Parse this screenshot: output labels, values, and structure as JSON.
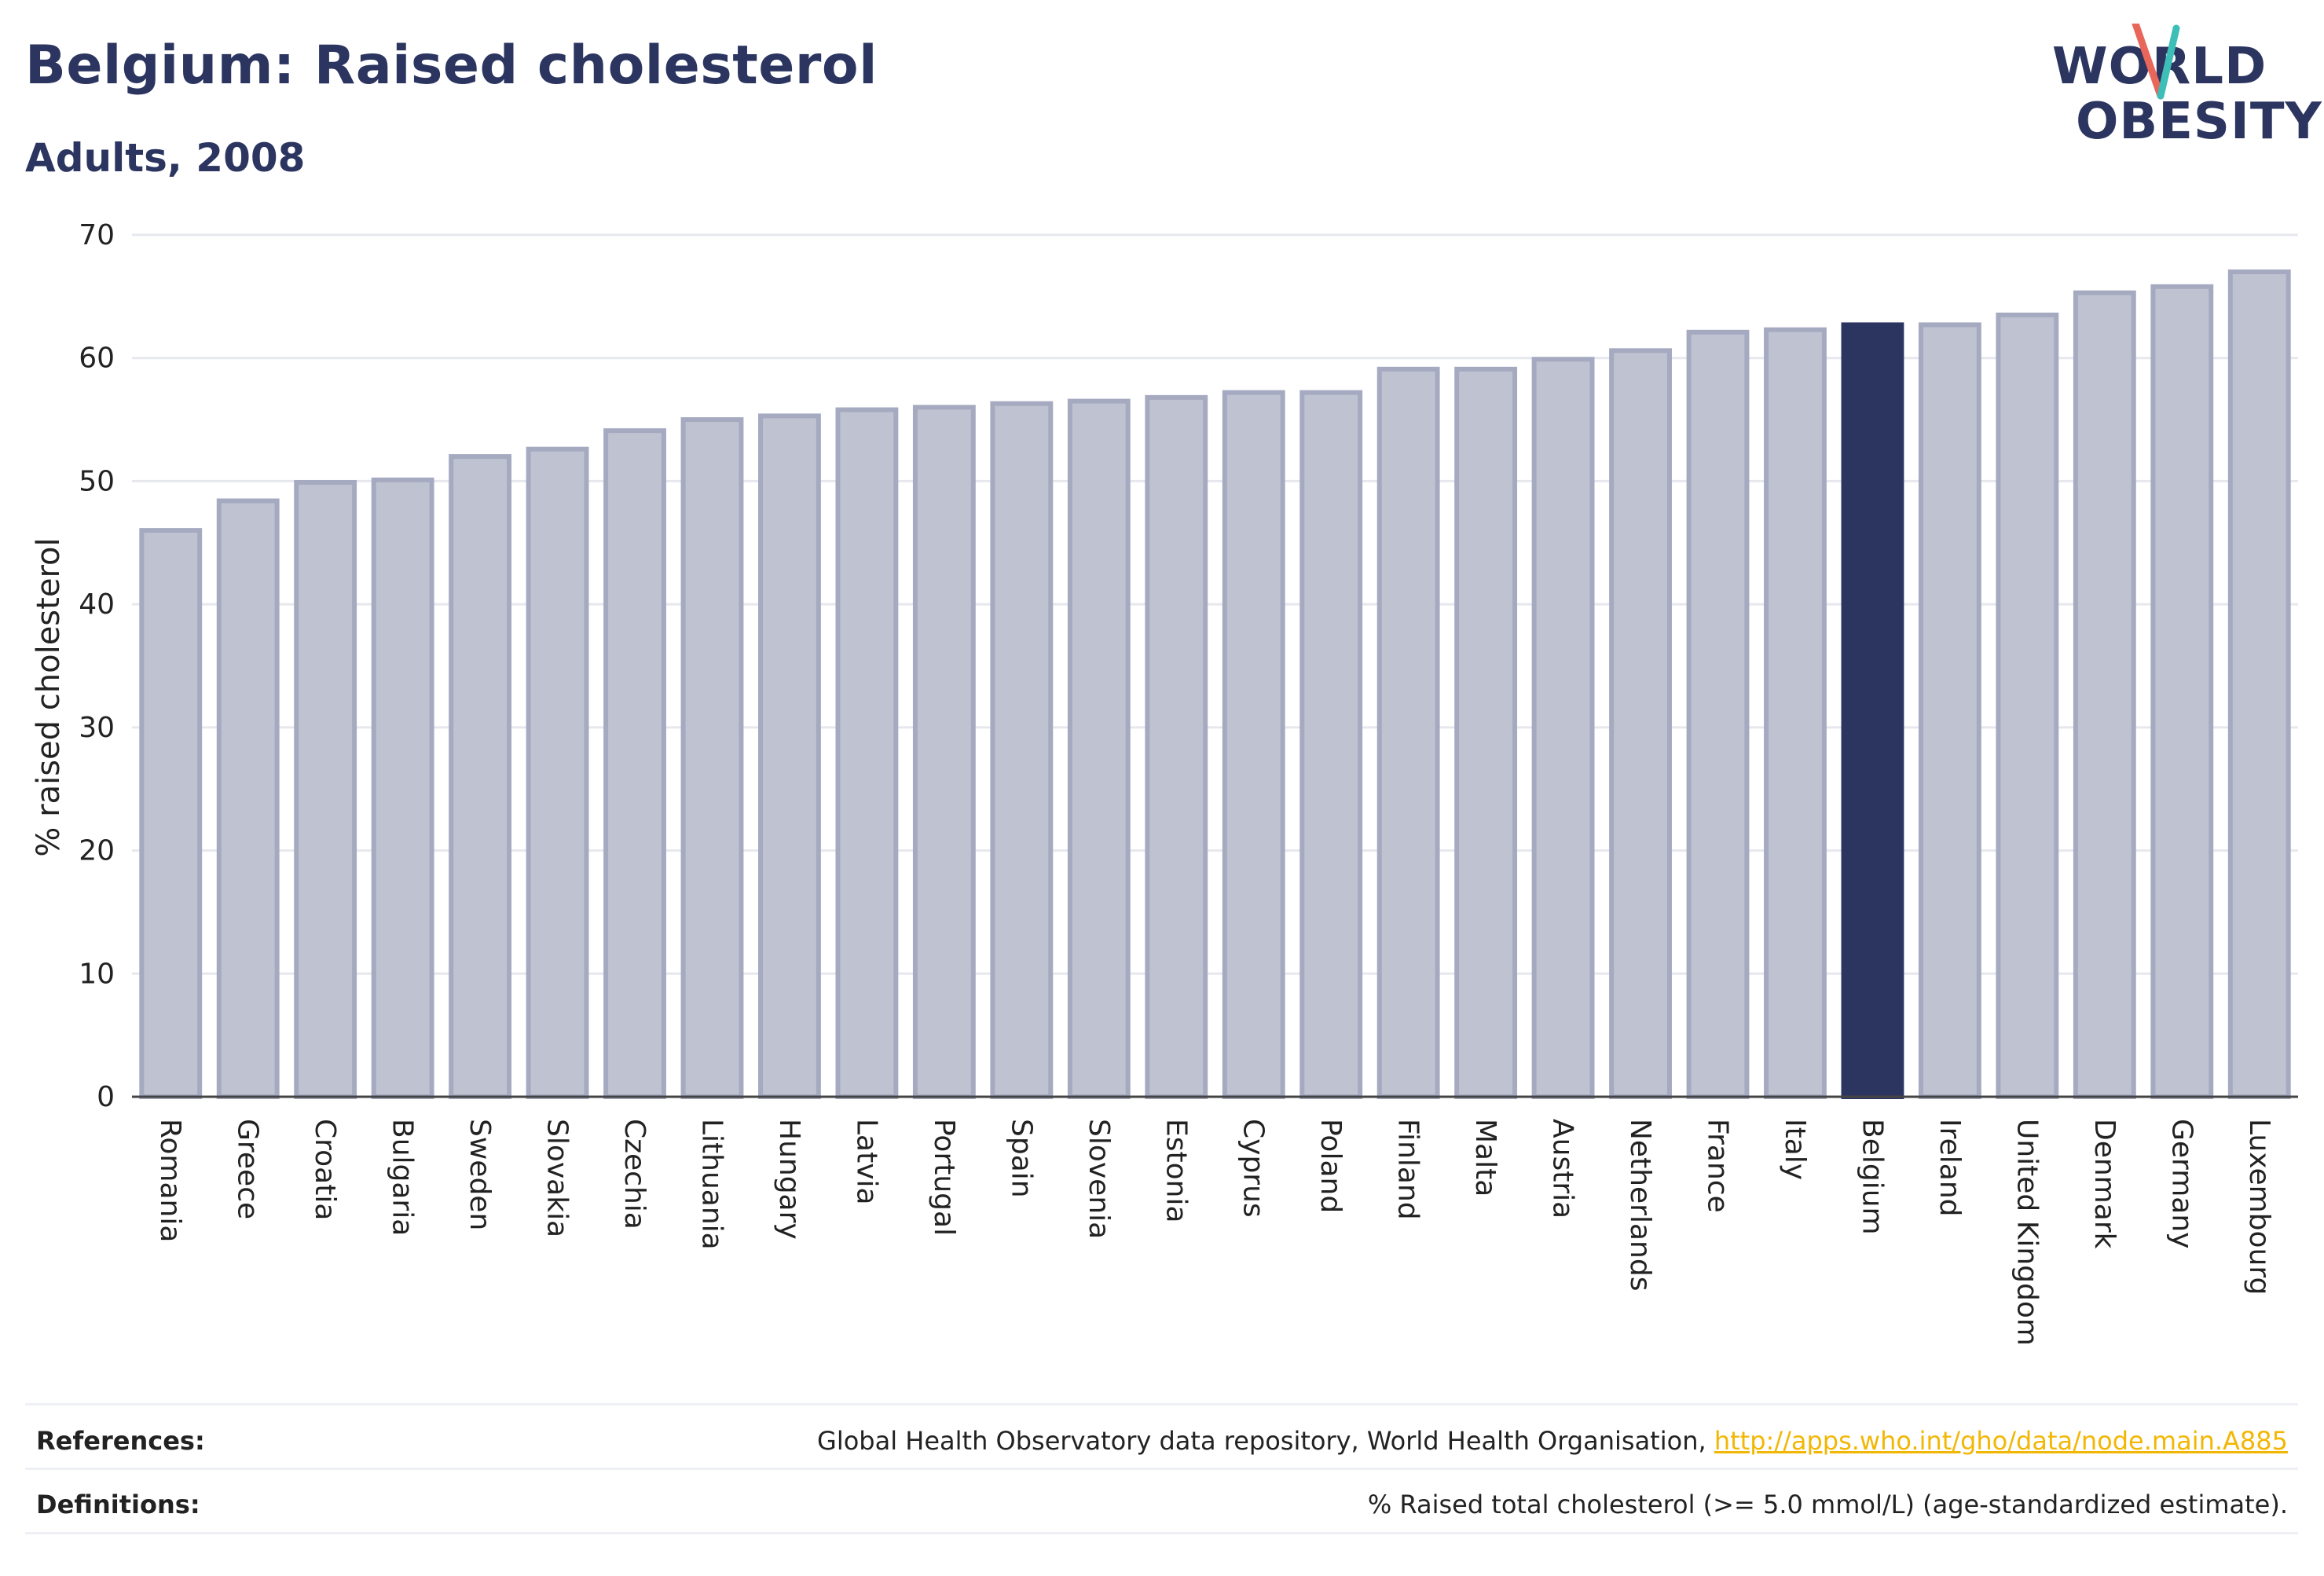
{
  "header": {
    "title": "Belgium: Raised cholesterol",
    "subtitle": "Adults, 2008"
  },
  "logo": {
    "line1": "WORLD",
    "line2": "OBESITY",
    "colors": {
      "text": "#2b3560",
      "slash_top": "#3dbfb8",
      "slash_bottom": "#e8675a"
    }
  },
  "chart_data": {
    "type": "bar",
    "title": "Belgium: Raised cholesterol",
    "subtitle": "Adults, 2008",
    "ylabel": "% raised cholesterol",
    "xlabel": "",
    "ylim": [
      0,
      70
    ],
    "yticks": [
      0,
      10,
      20,
      30,
      40,
      50,
      60,
      70
    ],
    "grid": true,
    "highlight": "Belgium",
    "colors": {
      "bar": "#bfc2d0",
      "bar_border": "#a5aac0",
      "highlight": "#2b3560",
      "grid": "#e6e8ee"
    },
    "categories": [
      "Romania",
      "Greece",
      "Croatia",
      "Bulgaria",
      "Sweden",
      "Slovakia",
      "Czechia",
      "Lithuania",
      "Hungary",
      "Latvia",
      "Portugal",
      "Spain",
      "Slovenia",
      "Estonia",
      "Cyprus",
      "Poland",
      "Finland",
      "Malta",
      "Austria",
      "Netherlands",
      "France",
      "Italy",
      "Belgium",
      "Ireland",
      "United Kingdom",
      "Denmark",
      "Germany",
      "Luxembourg"
    ],
    "values": [
      46.0,
      48.4,
      49.9,
      50.1,
      52.0,
      52.6,
      54.1,
      55.0,
      55.3,
      55.8,
      56.0,
      56.3,
      56.5,
      56.8,
      57.2,
      57.2,
      59.1,
      59.1,
      59.9,
      60.6,
      62.1,
      62.3,
      62.7,
      62.7,
      63.5,
      65.3,
      65.8,
      67.0
    ]
  },
  "footer": {
    "references_label": "References:",
    "references_text": "Global Health Observatory data repository, World Health Organisation, ",
    "references_link": "http://apps.who.int/gho/data/node.main.A885",
    "definitions_label": "Definitions:",
    "definitions_text": "% Raised total cholesterol (>= 5.0 mmol/L) (age-standardized estimate)."
  }
}
